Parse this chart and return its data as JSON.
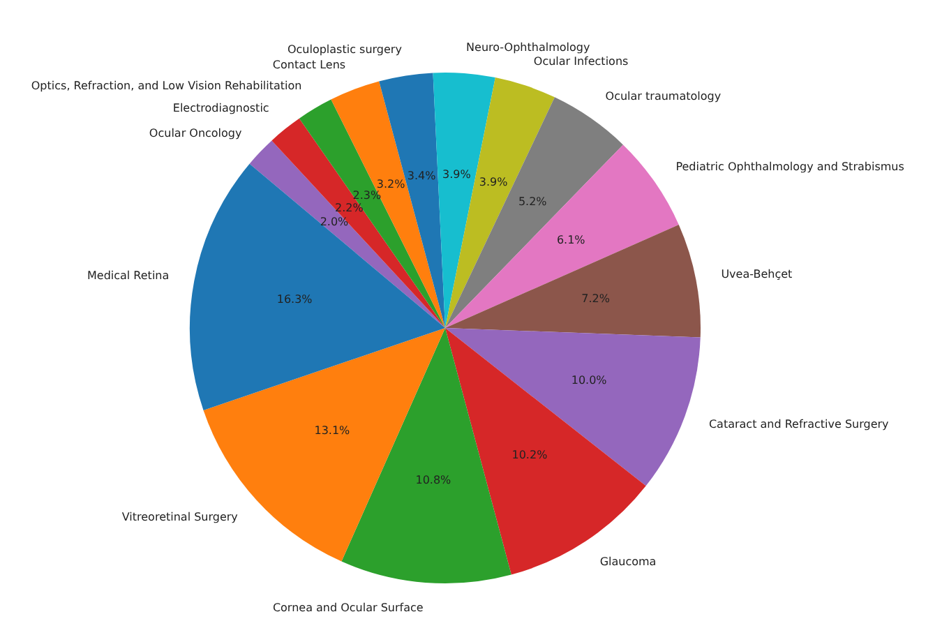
{
  "chart_data": {
    "type": "pie",
    "categories": [
      "Ocular Oncology",
      "Electrodiagnostic",
      "Optics, Refraction, and Low Vision Rehabilitation",
      "Contact Lens",
      "Oculoplastic surgery",
      "Neuro-Ophthalmology",
      "Ocular Infections",
      "Ocular traumatology",
      "Pediatric Ophthalmology and Strabismus",
      "Uvea-Behçet",
      "Cataract and Refractive Surgery",
      "Glaucoma",
      "Cornea and Ocular Surface",
      "Vitreoretinal Surgery",
      "Medical Retina"
    ],
    "values": [
      2.0,
      2.2,
      2.3,
      3.2,
      3.4,
      3.9,
      3.9,
      5.2,
      6.1,
      7.2,
      10.0,
      10.2,
      10.8,
      13.1,
      16.3
    ],
    "value_labels": [
      "2.0%",
      "2.2%",
      "2.3%",
      "3.2%",
      "3.4%",
      "3.9%",
      "3.9%",
      "5.2%",
      "6.1%",
      "7.2%",
      "10.0%",
      "10.2%",
      "10.8%",
      "13.1%",
      "16.3%"
    ],
    "colors": [
      "#9467bd",
      "#d62728",
      "#2ca02c",
      "#ff7f0e",
      "#1f77b4",
      "#17becf",
      "#bcbd22",
      "#7f7f7f",
      "#e377c2",
      "#8c564b",
      "#9467bd",
      "#d62728",
      "#2ca02c",
      "#ff7f0e",
      "#1f77b4"
    ],
    "legend": false
  }
}
